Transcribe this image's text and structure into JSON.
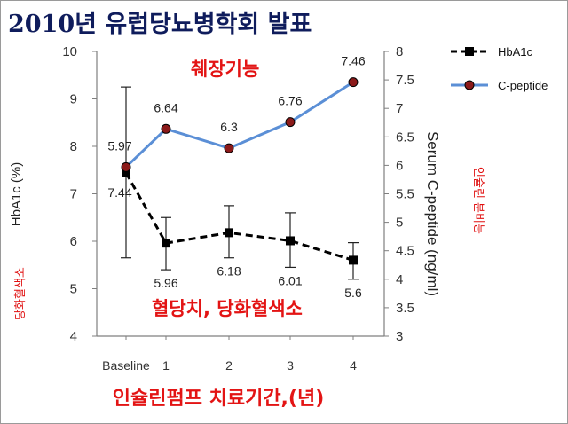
{
  "title": "2010년 유럽당뇨병학회 발표",
  "chart_data": {
    "type": "line",
    "categories": [
      "Baseline",
      "1",
      "2",
      "3",
      "4"
    ],
    "series": [
      {
        "name": "HbA1c",
        "axis": "left",
        "color": "#000000",
        "line_style": "dashed",
        "marker": "square",
        "values": [
          7.44,
          5.96,
          6.18,
          6.01,
          5.6
        ],
        "labels": [
          "7.44",
          "5.96",
          "6.18",
          "6.01",
          "5.6"
        ],
        "error_low": [
          5.65,
          5.4,
          5.65,
          5.45,
          5.2
        ],
        "error_high": [
          9.25,
          6.5,
          6.75,
          6.6,
          5.97
        ]
      },
      {
        "name": "C-peptide",
        "axis": "right",
        "color": "#5b8fd6",
        "line_style": "solid",
        "marker": "circle",
        "marker_color": "#8b1a1a",
        "values": [
          5.97,
          6.64,
          6.3,
          6.76,
          7.46
        ],
        "labels": [
          "5.97",
          "6.64",
          "6.3",
          "6.76",
          "7.46"
        ]
      }
    ],
    "y_left": {
      "label": "HbA1c (%)",
      "range": [
        4,
        10
      ],
      "ticks": [
        "4",
        "5",
        "6",
        "7",
        "8",
        "9",
        "10"
      ]
    },
    "y_right": {
      "label": "Serum C-peptide  (ng/ml)",
      "range": [
        3,
        8
      ],
      "ticks": [
        "3",
        "3.5",
        "4",
        "4.5",
        "5",
        "5.5",
        "6",
        "6.5",
        "7",
        "7.5",
        "8"
      ]
    },
    "x_title": "인슐린펌프 치료기간,(년)",
    "grid": false,
    "legend_position": "top-right"
  },
  "annotations": {
    "pancreas_function": "췌장기능",
    "glucose_hba1c": "혈당치, 당화혈색소",
    "left_axis_note": "당화혈색소",
    "right_axis_note": "인슐린 분비능"
  }
}
